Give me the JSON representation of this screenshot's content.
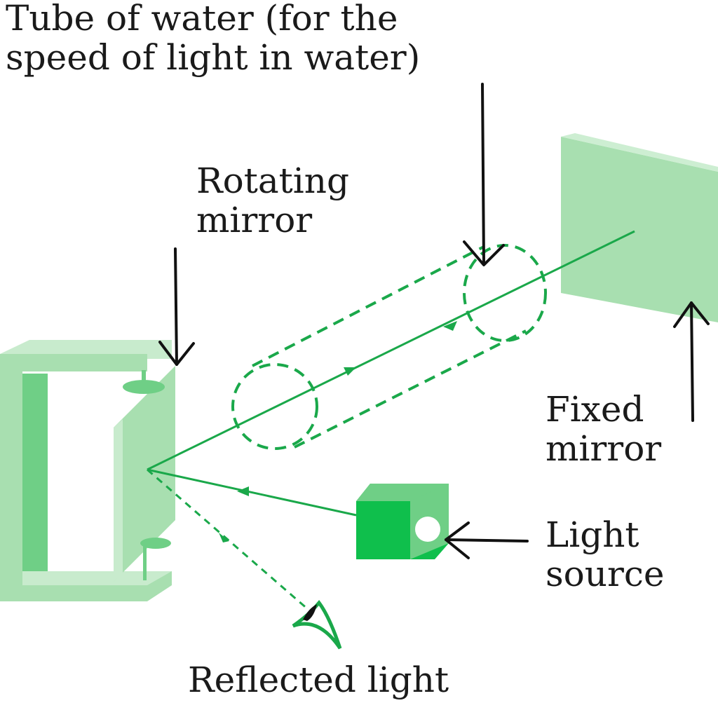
{
  "labels": {
    "tube": {
      "line1": "Tube of water (for the",
      "line2": "speed of light in water)"
    },
    "rotating_mirror": {
      "line1": "Rotating",
      "line2": "mirror"
    },
    "fixed_mirror": {
      "line1": "Fixed",
      "line2": "mirror"
    },
    "light_source": {
      "line1": "Light",
      "line2": "source"
    },
    "reflected_light": "Reflected light"
  },
  "colors": {
    "beam": "#1aa84a",
    "mirror_light": "#a8dfb0",
    "mirror_mid": "#6fcf86",
    "source_dark": "#0fbf4c",
    "arrow": "#111111"
  }
}
